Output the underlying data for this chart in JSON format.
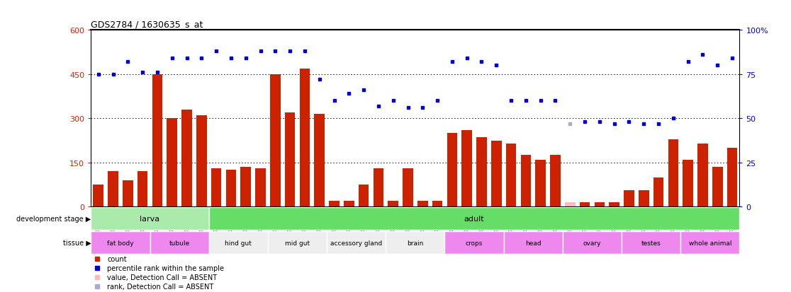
{
  "title": "GDS2784 / 1630635_s_at",
  "samples": [
    "GSM188092",
    "GSM188093",
    "GSM188094",
    "GSM188095",
    "GSM188100",
    "GSM188101",
    "GSM188102",
    "GSM188103",
    "GSM188072",
    "GSM188073",
    "GSM188074",
    "GSM188075",
    "GSM188076",
    "GSM188077",
    "GSM188078",
    "GSM188079",
    "GSM188080",
    "GSM188081",
    "GSM188082",
    "GSM188083",
    "GSM188084",
    "GSM188085",
    "GSM188086",
    "GSM188087",
    "GSM188088",
    "GSM188089",
    "GSM188090",
    "GSM188091",
    "GSM188096",
    "GSM188097",
    "GSM188098",
    "GSM188099",
    "GSM188104",
    "GSM188105",
    "GSM188106",
    "GSM188107",
    "GSM188108",
    "GSM188109",
    "GSM188110",
    "GSM188111",
    "GSM188112",
    "GSM188113",
    "GSM188114",
    "GSM188115"
  ],
  "counts": [
    75,
    120,
    90,
    120,
    450,
    300,
    330,
    310,
    130,
    125,
    135,
    130,
    450,
    320,
    470,
    315,
    20,
    20,
    75,
    130,
    20,
    130,
    20,
    20,
    250,
    260,
    235,
    225,
    215,
    175,
    160,
    175,
    15,
    15,
    15,
    15,
    55,
    55,
    100,
    230,
    160,
    215,
    135,
    200
  ],
  "percentile_raw": [
    75,
    75,
    82,
    76,
    76,
    84,
    84,
    84,
    88,
    84,
    84,
    88,
    88,
    88,
    88,
    72,
    60,
    64,
    66,
    57,
    60,
    56,
    56,
    60,
    82,
    84,
    82,
    80,
    60,
    60,
    60,
    60,
    47,
    48,
    48,
    47,
    48,
    47,
    47,
    50,
    82,
    86,
    80,
    84
  ],
  "absent_rank_indices": [
    32
  ],
  "ylim_left": [
    0,
    600
  ],
  "ylim_right": [
    0,
    100
  ],
  "yticks_left": [
    0,
    150,
    300,
    450,
    600
  ],
  "yticks_right": [
    0,
    25,
    50,
    75,
    100
  ],
  "bar_color": "#cc2200",
  "dot_color": "#0000cc",
  "absent_bar_color": "#ffbbbb",
  "absent_dot_color": "#aaaacc",
  "bg_color": "#ffffff",
  "development_stage_label": "development stage",
  "tissue_label": "tissue",
  "groups_dev": [
    {
      "label": "larva",
      "start": 0,
      "end": 8,
      "color": "#aaeaaa"
    },
    {
      "label": "adult",
      "start": 8,
      "end": 44,
      "color": "#66dd66"
    }
  ],
  "groups_tissue": [
    {
      "label": "fat body",
      "start": 0,
      "end": 4,
      "color": "#ee88ee"
    },
    {
      "label": "tubule",
      "start": 4,
      "end": 8,
      "color": "#ee88ee"
    },
    {
      "label": "hind gut",
      "start": 8,
      "end": 12,
      "color": "#eeeeee"
    },
    {
      "label": "mid gut",
      "start": 12,
      "end": 16,
      "color": "#eeeeee"
    },
    {
      "label": "accessory gland",
      "start": 16,
      "end": 20,
      "color": "#eeeeee"
    },
    {
      "label": "brain",
      "start": 20,
      "end": 24,
      "color": "#eeeeee"
    },
    {
      "label": "crops",
      "start": 24,
      "end": 28,
      "color": "#ee88ee"
    },
    {
      "label": "head",
      "start": 28,
      "end": 32,
      "color": "#ee88ee"
    },
    {
      "label": "ovary",
      "start": 32,
      "end": 36,
      "color": "#ee88ee"
    },
    {
      "label": "testes",
      "start": 36,
      "end": 40,
      "color": "#ee88ee"
    },
    {
      "label": "whole animal",
      "start": 40,
      "end": 44,
      "color": "#ee88ee"
    }
  ],
  "legend_items": [
    {
      "label": "count",
      "color": "#cc2200"
    },
    {
      "label": "percentile rank within the sample",
      "color": "#0000cc"
    },
    {
      "label": "value, Detection Call = ABSENT",
      "color": "#ffbbbb"
    },
    {
      "label": "rank, Detection Call = ABSENT",
      "color": "#aaaacc"
    }
  ]
}
